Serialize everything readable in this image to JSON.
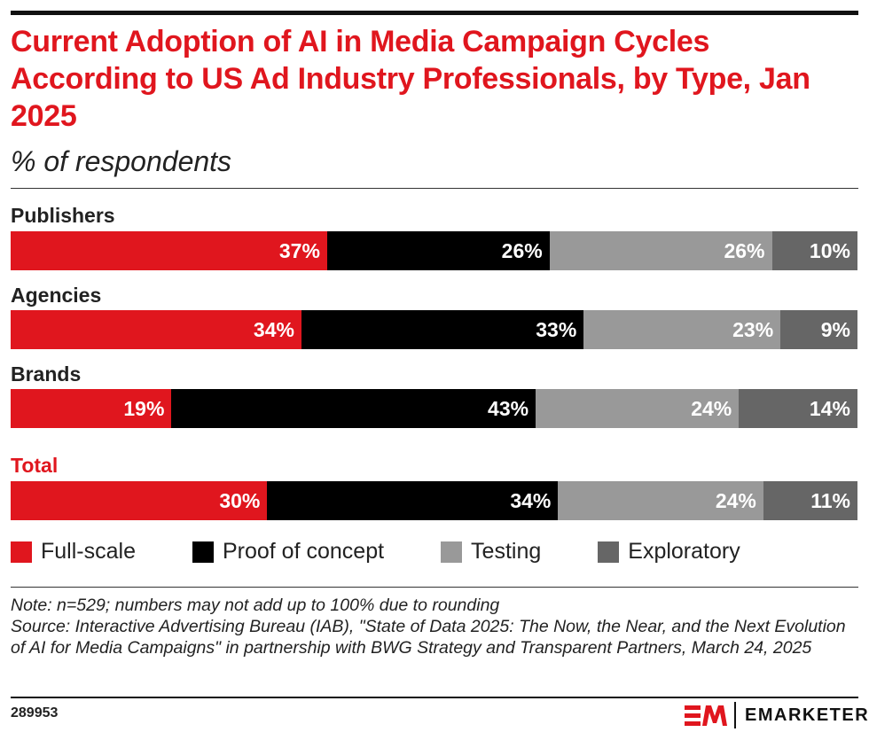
{
  "title": "Current Adoption of AI in Media Campaign Cycles According to US Ad Industry Professionals, by Type, Jan 2025",
  "subtitle": "% of respondents",
  "chart_data": {
    "type": "bar",
    "orientation": "horizontal",
    "stacked": true,
    "categories": [
      "Publishers",
      "Agencies",
      "Brands",
      "Total"
    ],
    "series": [
      {
        "name": "Full-scale",
        "color": "#e0161e",
        "values": [
          37,
          34,
          19,
          30
        ]
      },
      {
        "name": "Proof of concept",
        "color": "#000000",
        "values": [
          26,
          33,
          43,
          34
        ]
      },
      {
        "name": "Testing",
        "color": "#999999",
        "values": [
          26,
          23,
          24,
          24
        ]
      },
      {
        "name": "Exploratory",
        "color": "#666666",
        "values": [
          10,
          9,
          14,
          11
        ]
      }
    ],
    "unit": "%",
    "legend": "bottom"
  },
  "note": "Note: n=529; numbers may not add up to 100% due to rounding",
  "source": "Source: Interactive Advertising Bureau (IAB), \"State of Data 2025: The Now, the Near, and the Next Evolution of AI for Media Campaigns\" in partnership with BWG Strategy and Transparent Partners, March 24, 2025",
  "chart_id": "289953",
  "brand": "EMARKETER"
}
